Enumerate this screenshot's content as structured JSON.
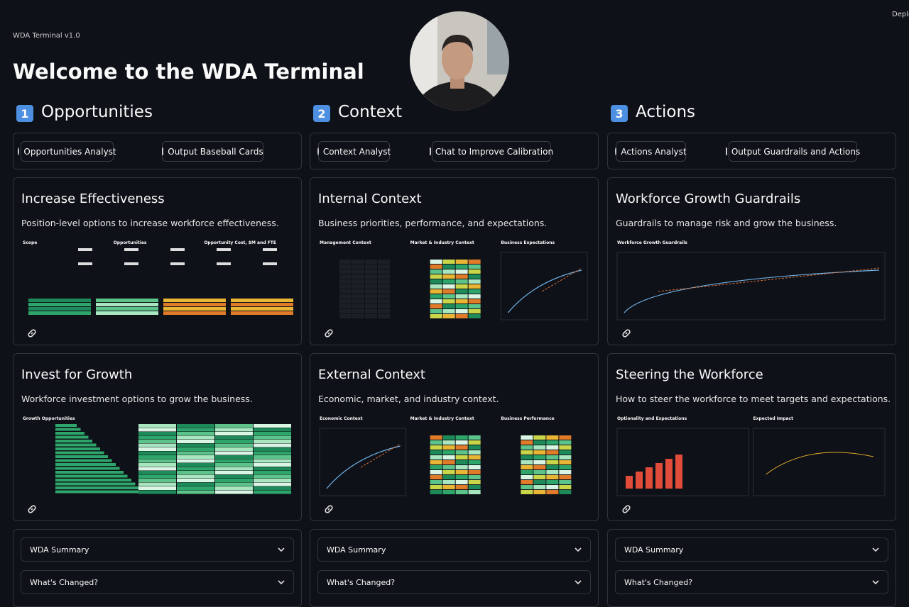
{
  "header": {
    "version": "WDA Terminal v1.0",
    "title": "Welcome to the WDA Terminal",
    "deploy": "Deplo"
  },
  "columns": [
    {
      "number": "1",
      "title": "Opportunities",
      "buttons": [
        "Opportunities Analyst",
        "Output Baseball Cards"
      ],
      "cards": [
        {
          "title": "Increase Effectiveness",
          "description": "Position-level options to increase workforce effectiveness.",
          "panels": [
            "Scope",
            "Opportunities",
            "Opportunity Cost, $M and FTE"
          ]
        },
        {
          "title": "Invest for Growth",
          "description": "Workforce investment options to grow the business.",
          "panels": [
            "Growth Opportunities"
          ]
        }
      ],
      "expanders": [
        "WDA Summary",
        "What's Changed?"
      ]
    },
    {
      "number": "2",
      "title": "Context",
      "buttons": [
        "Context Analyst",
        "Chat to Improve Calibration"
      ],
      "cards": [
        {
          "title": "Internal Context",
          "description": "Business priorities, performance, and expectations.",
          "panels": [
            "Management Context",
            "Market & Industry Context",
            "Business Expectations"
          ]
        },
        {
          "title": "External Context",
          "description": "Economic, market, and industry context.",
          "panels": [
            "Economic Context",
            "Market & Industry Context",
            "Business Performance"
          ]
        }
      ],
      "expanders": [
        "WDA Summary",
        "What's Changed?"
      ]
    },
    {
      "number": "3",
      "title": "Actions",
      "buttons": [
        "Actions Analyst",
        "Output Guardrails and Actions"
      ],
      "cards": [
        {
          "title": "Workforce Growth Guardrails",
          "description": "Guardrails to manage risk and grow the business.",
          "panels": [
            "Workforce Growth Guardrails"
          ]
        },
        {
          "title": "Steering the Workforce",
          "description": "How to steer the workforce to meet targets and expectations.",
          "panels": [
            "Optionality and Expectations",
            "Expected Impact"
          ]
        }
      ],
      "expanders": [
        "WDA Summary",
        "What's Changed?"
      ]
    }
  ]
}
